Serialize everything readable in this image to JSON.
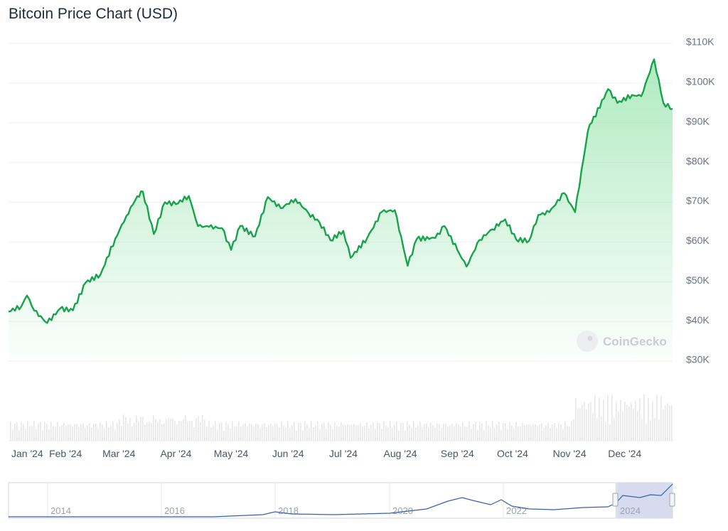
{
  "title": "Bitcoin Price Chart (USD)",
  "watermark": "CoinGecko",
  "colors": {
    "line": "#16a34a",
    "fill_top": "#86e0a0",
    "volume": "#e5e7eb",
    "grid": "#eef0f2",
    "navigator_line": "#3b5fa8",
    "navigator_selection": "#d6dcee"
  },
  "chart_data": {
    "type": "area",
    "title": "Bitcoin Price Chart (USD)",
    "y_ticks": [
      "$110K",
      "$100K",
      "$90K",
      "$80K",
      "$70K",
      "$60K",
      "$50K",
      "$40K",
      "$30K"
    ],
    "ylim": [
      30000,
      110000
    ],
    "x_ticks": [
      "Jan '24",
      "Feb '24",
      "Mar '24",
      "Apr '24",
      "May '24",
      "Jun '24",
      "Jul '24",
      "Aug '24",
      "Sep '24",
      "Oct '24",
      "Nov '24",
      "Dec '24"
    ],
    "grid": true,
    "series": [
      {
        "x": [
          "2024-01-01",
          "2024-01-08",
          "2024-01-11",
          "2024-01-15",
          "2024-01-22",
          "2024-01-29",
          "2024-02-05",
          "2024-02-12",
          "2024-02-20",
          "2024-02-28",
          "2024-03-05",
          "2024-03-11",
          "2024-03-14",
          "2024-03-20",
          "2024-03-26",
          "2024-04-01",
          "2024-04-08",
          "2024-04-13",
          "2024-04-19",
          "2024-04-26",
          "2024-05-01",
          "2024-05-06",
          "2024-05-14",
          "2024-05-21",
          "2024-05-28",
          "2024-06-05",
          "2024-06-12",
          "2024-06-18",
          "2024-06-24",
          "2024-07-01",
          "2024-07-05",
          "2024-07-14",
          "2024-07-22",
          "2024-07-29",
          "2024-08-05",
          "2024-08-10",
          "2024-08-20",
          "2024-08-25",
          "2024-09-01",
          "2024-09-06",
          "2024-09-13",
          "2024-09-20",
          "2024-09-27",
          "2024-10-03",
          "2024-10-10",
          "2024-10-15",
          "2024-10-21",
          "2024-10-29",
          "2024-11-04",
          "2024-11-11",
          "2024-11-13",
          "2024-11-22",
          "2024-11-27",
          "2024-12-05",
          "2024-12-10",
          "2024-12-17",
          "2024-12-22",
          "2024-12-27"
        ],
        "y": [
          42500,
          43800,
          46500,
          42700,
          39600,
          43200,
          42800,
          49800,
          51800,
          60800,
          66500,
          71500,
          72700,
          62000,
          70000,
          69500,
          71600,
          64000,
          63800,
          63500,
          58000,
          64000,
          61400,
          71300,
          68500,
          70800,
          67300,
          65000,
          60400,
          62800,
          56000,
          61000,
          67600,
          68000,
          54000,
          60800,
          61000,
          64000,
          58000,
          53800,
          60500,
          63200,
          65700,
          60600,
          60300,
          66800,
          67500,
          72300,
          67500,
          88000,
          90000,
          98500,
          95000,
          97000,
          96700,
          106000,
          95000,
          93500
        ]
      }
    ],
    "navigator_ticks": [
      "2014",
      "2016",
      "2018",
      "2020",
      "2022",
      "2024"
    ]
  }
}
